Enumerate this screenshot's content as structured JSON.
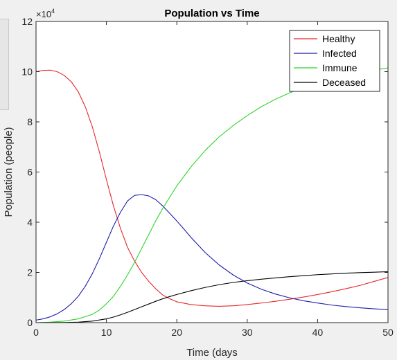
{
  "chart_data": {
    "type": "line",
    "title": "Population vs Time",
    "xlabel": "Time (days",
    "ylabel": "Population (people)",
    "y_exponent_label": "×10",
    "y_exponent_power": "4",
    "xlim": [
      0,
      50
    ],
    "ylim": [
      0,
      120000
    ],
    "x_ticks": [
      0,
      10,
      20,
      30,
      40,
      50
    ],
    "y_ticks": [
      0,
      20000,
      40000,
      60000,
      80000,
      100000,
      120000
    ],
    "y_tick_labels": [
      "0",
      "2",
      "4",
      "6",
      "8",
      "10",
      "12"
    ],
    "x_tick_labels": [
      "0",
      "10",
      "20",
      "30",
      "40",
      "50"
    ],
    "grid": false,
    "legend_position": "top-right",
    "series": [
      {
        "name": "Healthy",
        "color": "#e8262b",
        "x": [
          0,
          1,
          2,
          3,
          4,
          5,
          6,
          7,
          8,
          9,
          10,
          11,
          12,
          13,
          14,
          15,
          16,
          17,
          18,
          19,
          20,
          22,
          24,
          26,
          28,
          30,
          32,
          34,
          36,
          38,
          40,
          42,
          44,
          46,
          48,
          50
        ],
        "values": [
          100000,
          100500,
          100600,
          100000,
          98500,
          96000,
          92000,
          86000,
          78000,
          68000,
          57000,
          46500,
          37500,
          30000,
          24500,
          20000,
          16500,
          13500,
          11000,
          9500,
          8300,
          7200,
          6700,
          6500,
          6700,
          7200,
          7800,
          8500,
          9300,
          10200,
          11200,
          12300,
          13500,
          14800,
          16400,
          18000
        ]
      },
      {
        "name": "Infected",
        "color": "#1c1caa",
        "x": [
          0,
          1,
          2,
          3,
          4,
          5,
          6,
          7,
          8,
          9,
          10,
          11,
          12,
          13,
          14,
          15,
          16,
          17,
          18,
          19,
          20,
          21,
          22,
          24,
          26,
          28,
          30,
          32,
          34,
          36,
          38,
          40,
          42,
          44,
          46,
          48,
          50
        ],
        "values": [
          1000,
          1500,
          2300,
          3500,
          5200,
          7500,
          10500,
          14500,
          19500,
          25500,
          32000,
          38500,
          44000,
          48500,
          50700,
          51000,
          50500,
          49000,
          46500,
          43500,
          40500,
          37300,
          34000,
          28000,
          23000,
          19000,
          15800,
          13300,
          11400,
          9900,
          8700,
          7800,
          7000,
          6400,
          5900,
          5500,
          5200
        ]
      },
      {
        "name": "Immune",
        "color": "#2bd42b",
        "x": [
          0,
          2,
          4,
          6,
          8,
          9,
          10,
          11,
          12,
          13,
          14,
          15,
          16,
          17,
          18,
          19,
          20,
          22,
          24,
          26,
          28,
          30,
          32,
          34,
          36,
          38,
          40,
          42,
          44,
          46,
          48,
          50
        ],
        "values": [
          0,
          200,
          600,
          1500,
          3300,
          5000,
          7500,
          10500,
          14500,
          19000,
          24000,
          29500,
          35000,
          40500,
          45500,
          50000,
          54500,
          62000,
          68500,
          74000,
          78500,
          82500,
          86000,
          89000,
          91500,
          93800,
          95700,
          97300,
          98600,
          99700,
          100600,
          101500
        ]
      },
      {
        "name": "Deceased",
        "color": "#000000",
        "x": [
          0,
          2,
          4,
          6,
          8,
          10,
          11,
          12,
          13,
          14,
          15,
          16,
          17,
          18,
          19,
          20,
          22,
          24,
          26,
          28,
          30,
          32,
          34,
          36,
          38,
          40,
          42,
          44,
          46,
          48,
          50
        ],
        "values": [
          0,
          20,
          70,
          200,
          600,
          1500,
          2200,
          3100,
          4100,
          5200,
          6300,
          7400,
          8500,
          9500,
          10400,
          11200,
          12700,
          14000,
          15100,
          16000,
          16700,
          17300,
          17800,
          18300,
          18700,
          19100,
          19400,
          19700,
          19900,
          20100,
          20300
        ]
      }
    ]
  }
}
